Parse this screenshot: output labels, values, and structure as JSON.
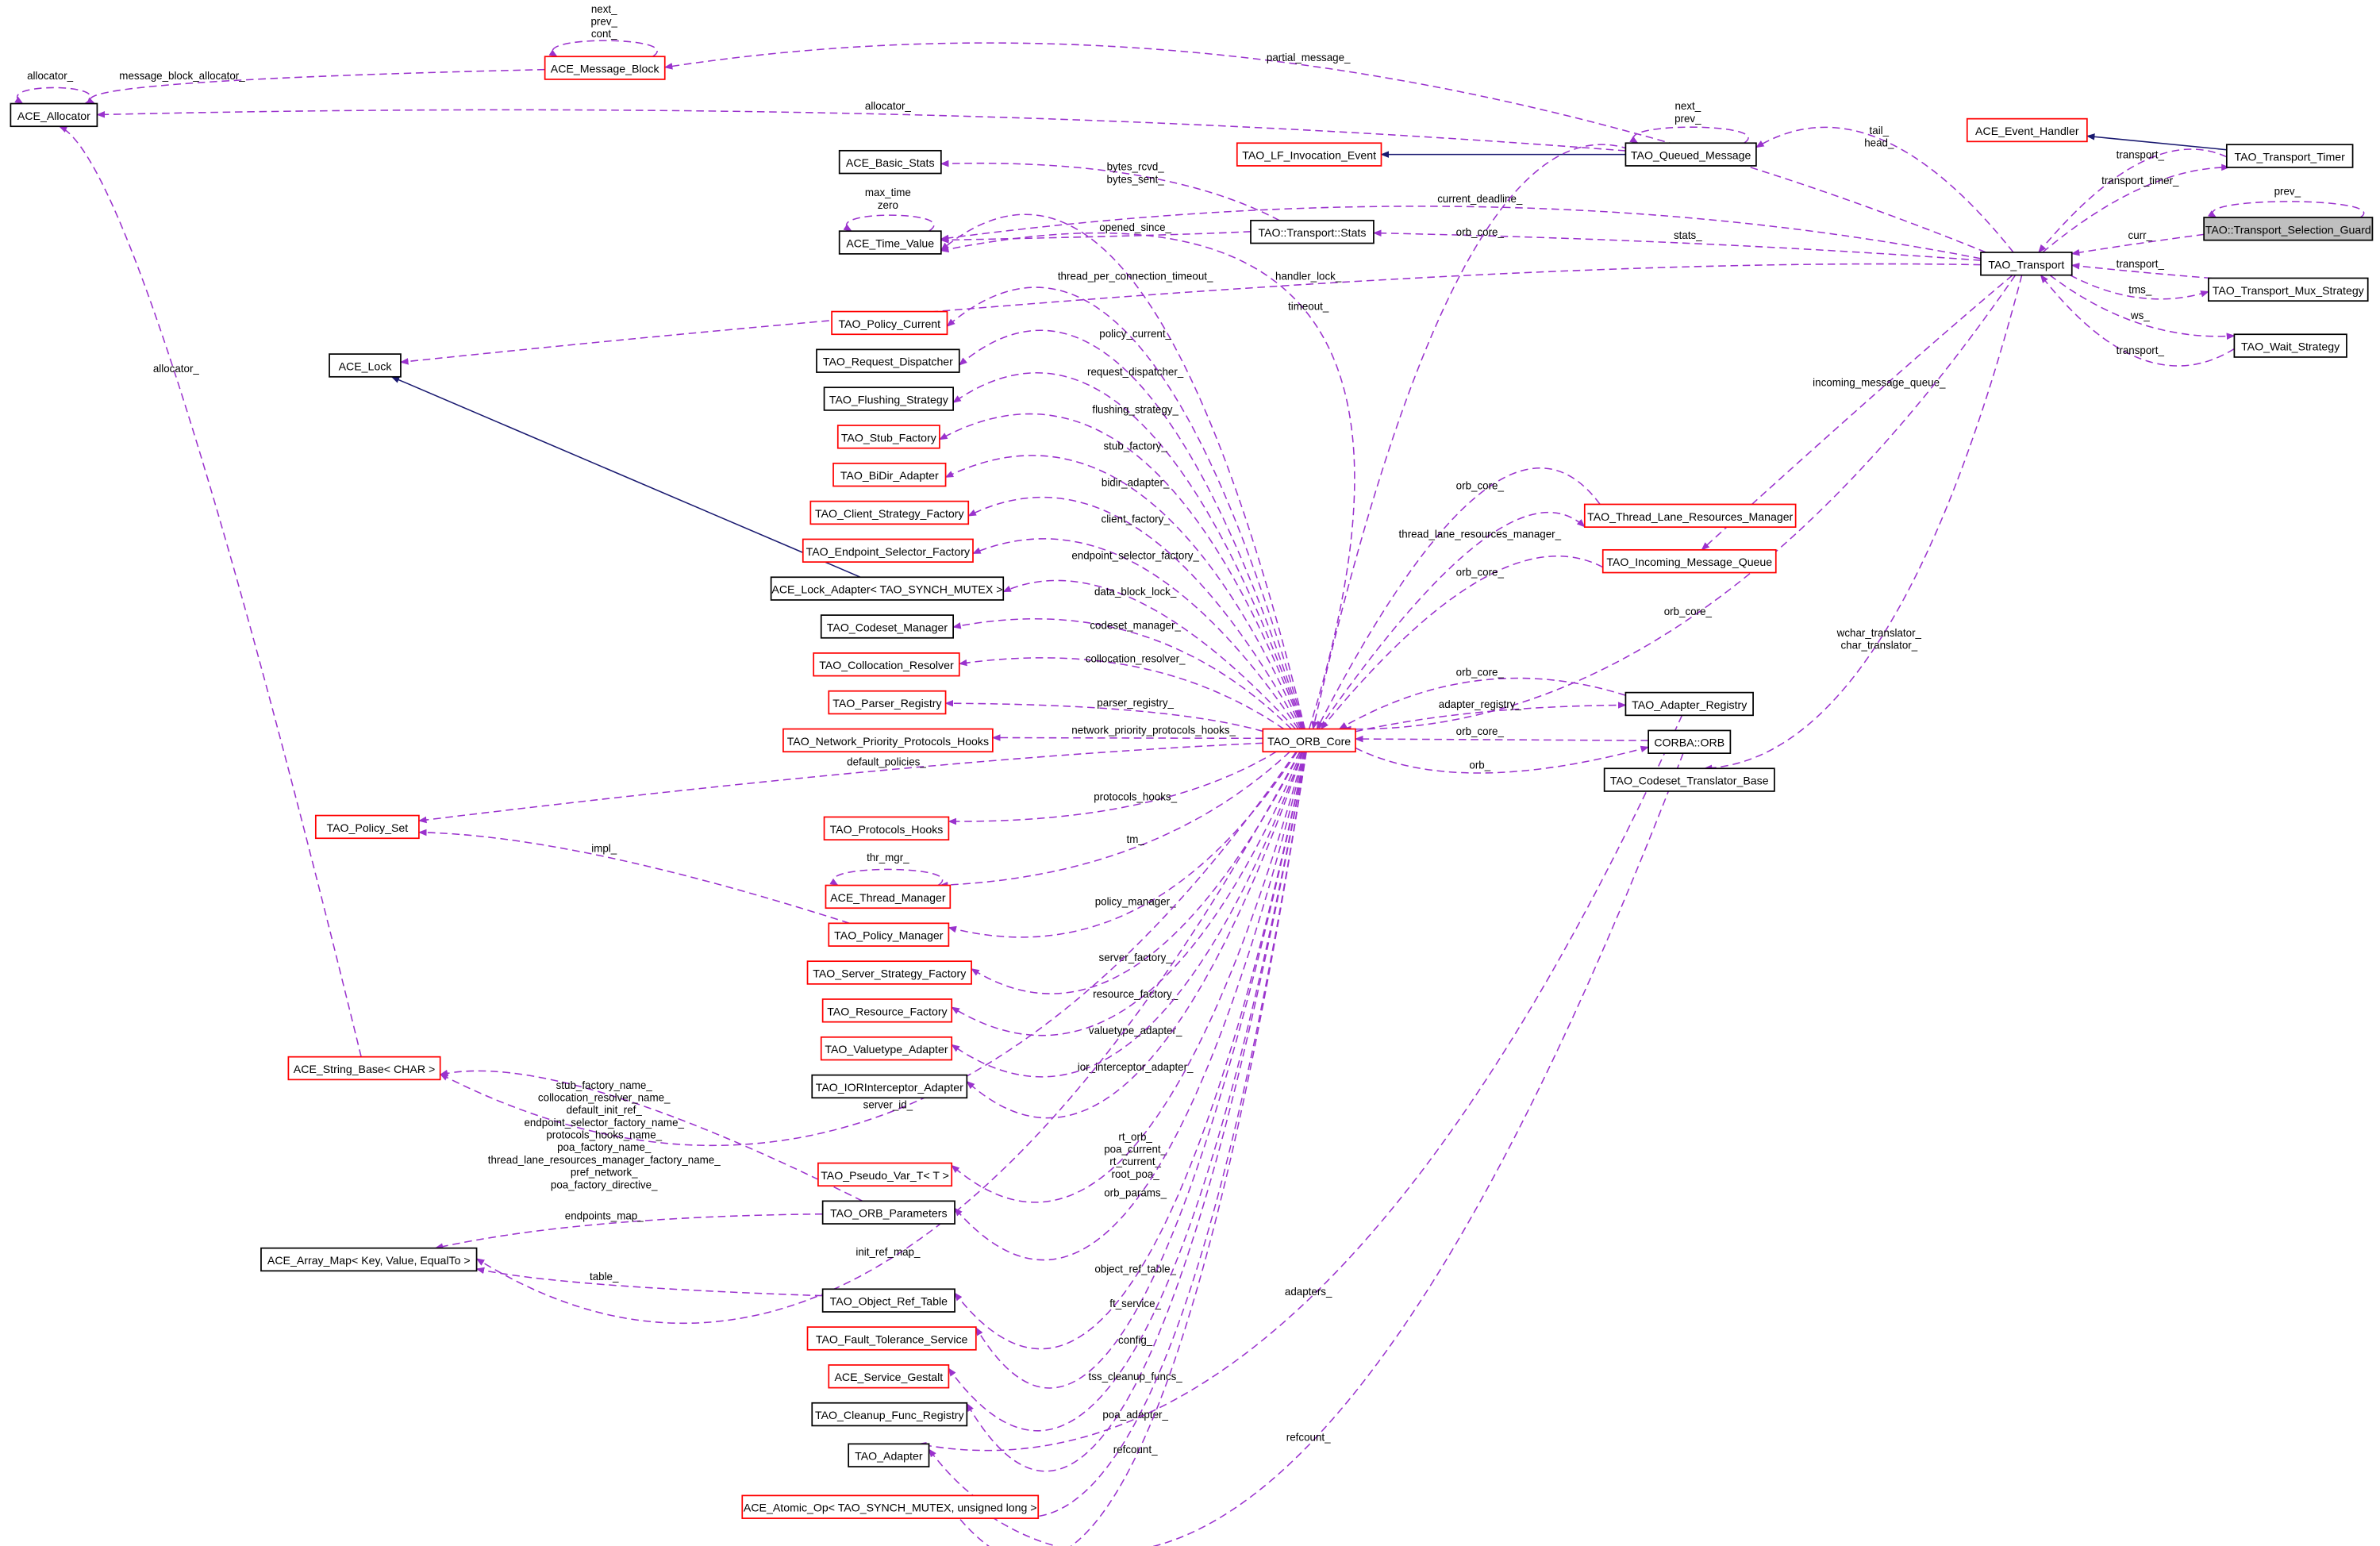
{
  "colors": {
    "member_edge": "#9a32cd",
    "inherit_edge": "#191970",
    "undocumented_border": "#ff0000",
    "documented_border": "#000000",
    "focus_fill": "#bfbfbf"
  },
  "nodes": [
    {
      "id": "alloc",
      "label": "ACE_Allocator",
      "style": "black"
    },
    {
      "id": "mb",
      "label": "ACE_Message_Block",
      "style": "red"
    },
    {
      "id": "bstats",
      "label": "ACE_Basic_Stats",
      "style": "black"
    },
    {
      "id": "tv",
      "label": "ACE_Time_Value",
      "style": "black"
    },
    {
      "id": "lfie",
      "label": "TAO_LF_Invocation_Event",
      "style": "red"
    },
    {
      "id": "qm",
      "label": "TAO_Queued_Message",
      "style": "black"
    },
    {
      "id": "eh",
      "label": "ACE_Event_Handler",
      "style": "red"
    },
    {
      "id": "ttimer",
      "label": "TAO_Transport_Timer",
      "style": "black"
    },
    {
      "id": "guard",
      "label": "TAO::Transport_Selection_Guard",
      "style": "gray"
    },
    {
      "id": "tstats",
      "label": "TAO::Transport::Stats",
      "style": "black"
    },
    {
      "id": "transport",
      "label": "TAO_Transport",
      "style": "black"
    },
    {
      "id": "mux",
      "label": "TAO_Transport_Mux_Strategy",
      "style": "black"
    },
    {
      "id": "wait",
      "label": "TAO_Wait_Strategy",
      "style": "black"
    },
    {
      "id": "lock",
      "label": "ACE_Lock",
      "style": "black"
    },
    {
      "id": "pcur",
      "label": "TAO_Policy_Current",
      "style": "red"
    },
    {
      "id": "rdisp",
      "label": "TAO_Request_Dispatcher",
      "style": "black"
    },
    {
      "id": "flush",
      "label": "TAO_Flushing_Strategy",
      "style": "black"
    },
    {
      "id": "stubf",
      "label": "TAO_Stub_Factory",
      "style": "red"
    },
    {
      "id": "bidir",
      "label": "TAO_BiDir_Adapter",
      "style": "red"
    },
    {
      "id": "csf",
      "label": "TAO_Client_Strategy_Factory",
      "style": "red"
    },
    {
      "id": "esf",
      "label": "TAO_Endpoint_Selector_Factory",
      "style": "red"
    },
    {
      "id": "lockad",
      "label": "ACE_Lock_Adapter< TAO_SYNCH_MUTEX >",
      "style": "black"
    },
    {
      "id": "csm",
      "label": "TAO_Codeset_Manager",
      "style": "black"
    },
    {
      "id": "colres",
      "label": "TAO_Collocation_Resolver",
      "style": "red"
    },
    {
      "id": "preg",
      "label": "TAO_Parser_Registry",
      "style": "red"
    },
    {
      "id": "npph",
      "label": "TAO_Network_Priority_Protocols_Hooks",
      "style": "red"
    },
    {
      "id": "orbcore",
      "label": "TAO_ORB_Core",
      "style": "red"
    },
    {
      "id": "tlrm",
      "label": "TAO_Thread_Lane_Resources_Manager",
      "style": "red"
    },
    {
      "id": "imq",
      "label": "TAO_Incoming_Message_Queue",
      "style": "red"
    },
    {
      "id": "areg",
      "label": "TAO_Adapter_Registry",
      "style": "black"
    },
    {
      "id": "orb",
      "label": "CORBA::ORB",
      "style": "black"
    },
    {
      "id": "ctb",
      "label": "TAO_Codeset_Translator_Base",
      "style": "black"
    },
    {
      "id": "pset",
      "label": "TAO_Policy_Set",
      "style": "red"
    },
    {
      "id": "phooks",
      "label": "TAO_Protocols_Hooks",
      "style": "red"
    },
    {
      "id": "thrmgr",
      "label": "ACE_Thread_Manager",
      "style": "red"
    },
    {
      "id": "pmgr",
      "label": "TAO_Policy_Manager",
      "style": "red"
    },
    {
      "id": "ssf",
      "label": "TAO_Server_Strategy_Factory",
      "style": "red"
    },
    {
      "id": "rf",
      "label": "TAO_Resource_Factory",
      "style": "red"
    },
    {
      "id": "vta",
      "label": "TAO_Valuetype_Adapter",
      "style": "red"
    },
    {
      "id": "iora",
      "label": "TAO_IORInterceptor_Adapter",
      "style": "black"
    },
    {
      "id": "strb",
      "label": "ACE_String_Base< CHAR >",
      "style": "red"
    },
    {
      "id": "pvar",
      "label": "TAO_Pseudo_Var_T< T >",
      "style": "red"
    },
    {
      "id": "orbp",
      "label": "TAO_ORB_Parameters",
      "style": "black"
    },
    {
      "id": "amap",
      "label": "ACE_Array_Map< Key, Value, EqualTo >",
      "style": "black"
    },
    {
      "id": "ort",
      "label": "TAO_Object_Ref_Table",
      "style": "black"
    },
    {
      "id": "fts",
      "label": "TAO_Fault_Tolerance_Service",
      "style": "red"
    },
    {
      "id": "sg",
      "label": "ACE_Service_Gestalt",
      "style": "red"
    },
    {
      "id": "cfr",
      "label": "TAO_Cleanup_Func_Registry",
      "style": "black"
    },
    {
      "id": "adapter",
      "label": "TAO_Adapter",
      "style": "black"
    },
    {
      "id": "atomic",
      "label": "ACE_Atomic_Op< TAO_SYNCH_MUTEX, unsigned long >",
      "style": "red"
    }
  ],
  "edges": [
    {
      "from": "alloc",
      "to": "alloc",
      "kind": "member",
      "label": [
        "allocator_"
      ]
    },
    {
      "from": "mb",
      "to": "alloc",
      "kind": "member",
      "label": [
        "message_block_allocator_"
      ]
    },
    {
      "from": "mb",
      "to": "mb",
      "kind": "member",
      "label": [
        "next_",
        "prev_",
        "cont_"
      ]
    },
    {
      "from": "transport",
      "to": "mb",
      "kind": "member",
      "label": [
        "partial_message_"
      ]
    },
    {
      "from": "qm",
      "to": "alloc",
      "kind": "member",
      "label": [
        "allocator_"
      ]
    },
    {
      "from": "qm",
      "to": "qm",
      "kind": "member",
      "label": [
        "next_",
        "prev_"
      ]
    },
    {
      "from": "qm",
      "to": "lfie",
      "kind": "inherit",
      "label": []
    },
    {
      "from": "transport",
      "to": "qm",
      "kind": "member",
      "label": [
        "tail_",
        "head_"
      ]
    },
    {
      "from": "ttimer",
      "to": "eh",
      "kind": "inherit",
      "label": []
    },
    {
      "from": "ttimer",
      "to": "transport",
      "kind": "member",
      "label": [
        "transport_"
      ]
    },
    {
      "from": "transport",
      "to": "ttimer",
      "kind": "member",
      "label": [
        "transport_timer_"
      ]
    },
    {
      "from": "guard",
      "to": "guard",
      "kind": "member",
      "label": [
        "prev_"
      ]
    },
    {
      "from": "guard",
      "to": "transport",
      "kind": "member",
      "label": [
        "curr_"
      ]
    },
    {
      "from": "mux",
      "to": "transport",
      "kind": "member",
      "label": [
        "transport_"
      ]
    },
    {
      "from": "transport",
      "to": "mux",
      "kind": "member",
      "label": [
        "tms_"
      ]
    },
    {
      "from": "transport",
      "to": "wait",
      "kind": "member",
      "label": [
        "ws_"
      ]
    },
    {
      "from": "wait",
      "to": "transport",
      "kind": "member",
      "label": [
        "transport_"
      ]
    },
    {
      "from": "tstats",
      "to": "bstats",
      "kind": "member",
      "label": [
        "bytes_rcvd_",
        "bytes_sent_"
      ]
    },
    {
      "from": "tstats",
      "to": "tv",
      "kind": "member",
      "label": [
        "opened_since_"
      ]
    },
    {
      "from": "transport",
      "to": "tstats",
      "kind": "member",
      "label": [
        "stats_"
      ]
    },
    {
      "from": "transport",
      "to": "tv",
      "kind": "member",
      "label": [
        "current_deadline_"
      ]
    },
    {
      "from": "tv",
      "to": "tv",
      "kind": "member",
      "label": [
        "max_time",
        "zero"
      ]
    },
    {
      "from": "orbcore",
      "to": "tv",
      "kind": "member",
      "label": [
        "thread_per_connection_timeout_"
      ]
    },
    {
      "from": "transport",
      "to": "lock",
      "kind": "member",
      "label": [
        "handler_lock_"
      ]
    },
    {
      "from": "qm",
      "to": "orbcore",
      "kind": "member",
      "label": [
        "orb_core_"
      ]
    },
    {
      "from": "orbcore",
      "to": "tv",
      "kind": "member",
      "label": [
        "timeout_"
      ]
    },
    {
      "from": "lockad",
      "to": "lock",
      "kind": "inherit",
      "label": []
    },
    {
      "from": "orbcore",
      "to": "pcur",
      "kind": "member",
      "label": [
        "policy_current_"
      ]
    },
    {
      "from": "orbcore",
      "to": "rdisp",
      "kind": "member",
      "label": [
        "request_dispatcher_"
      ]
    },
    {
      "from": "orbcore",
      "to": "flush",
      "kind": "member",
      "label": [
        "flushing_strategy_"
      ]
    },
    {
      "from": "orbcore",
      "to": "stubf",
      "kind": "member",
      "label": [
        "stub_factory_"
      ]
    },
    {
      "from": "orbcore",
      "to": "bidir",
      "kind": "member",
      "label": [
        "bidir_adapter_"
      ]
    },
    {
      "from": "orbcore",
      "to": "csf",
      "kind": "member",
      "label": [
        "client_factory_"
      ]
    },
    {
      "from": "orbcore",
      "to": "esf",
      "kind": "member",
      "label": [
        "endpoint_selector_factory_"
      ]
    },
    {
      "from": "orbcore",
      "to": "lockad",
      "kind": "member",
      "label": [
        "data_block_lock_"
      ]
    },
    {
      "from": "orbcore",
      "to": "csm",
      "kind": "member",
      "label": [
        "codeset_manager_"
      ]
    },
    {
      "from": "orbcore",
      "to": "colres",
      "kind": "member",
      "label": [
        "collocation_resolver_"
      ]
    },
    {
      "from": "orbcore",
      "to": "preg",
      "kind": "member",
      "label": [
        "parser_registry_"
      ]
    },
    {
      "from": "orbcore",
      "to": "npph",
      "kind": "member",
      "label": [
        "network_priority_protocols_hooks_"
      ]
    },
    {
      "from": "orbcore",
      "to": "pset",
      "kind": "member",
      "label": [
        "default_policies_"
      ]
    },
    {
      "from": "orbcore",
      "to": "phooks",
      "kind": "member",
      "label": [
        "protocols_hooks_"
      ]
    },
    {
      "from": "orbcore",
      "to": "thrmgr",
      "kind": "member",
      "label": [
        "tm_"
      ]
    },
    {
      "from": "thrmgr",
      "to": "thrmgr",
      "kind": "member",
      "label": [
        "thr_mgr_"
      ]
    },
    {
      "from": "orbcore",
      "to": "pmgr",
      "kind": "member",
      "label": [
        "policy_manager_"
      ]
    },
    {
      "from": "orbcore",
      "to": "ssf",
      "kind": "member",
      "label": [
        "server_factory_"
      ]
    },
    {
      "from": "orbcore",
      "to": "rf",
      "kind": "member",
      "label": [
        "resource_factory_"
      ]
    },
    {
      "from": "orbcore",
      "to": "vta",
      "kind": "member",
      "label": [
        "valuetype_adapter_"
      ]
    },
    {
      "from": "orbcore",
      "to": "iora",
      "kind": "member",
      "label": [
        "ior_interceptor_adapter_"
      ]
    },
    {
      "from": "orbcore",
      "to": "strb",
      "kind": "member",
      "label": [
        "server_id_"
      ]
    },
    {
      "from": "orbcore",
      "to": "pvar",
      "kind": "member",
      "label": [
        "rt_orb_",
        "poa_current_",
        "rt_current_",
        "root_poa_"
      ]
    },
    {
      "from": "orbcore",
      "to": "orbp",
      "kind": "member",
      "label": [
        "orb_params_"
      ]
    },
    {
      "from": "orbcore",
      "to": "amap",
      "kind": "member",
      "label": [
        "init_ref_map_"
      ]
    },
    {
      "from": "orbcore",
      "to": "ort",
      "kind": "member",
      "label": [
        "object_ref_table_"
      ]
    },
    {
      "from": "orbcore",
      "to": "fts",
      "kind": "member",
      "label": [
        "ft_service_"
      ]
    },
    {
      "from": "orbcore",
      "to": "sg",
      "kind": "member",
      "label": [
        "config_"
      ]
    },
    {
      "from": "orbcore",
      "to": "cfr",
      "kind": "member",
      "label": [
        "tss_cleanup_funcs_"
      ]
    },
    {
      "from": "orbcore",
      "to": "adapter",
      "kind": "member",
      "label": [
        "poa_adapter_"
      ]
    },
    {
      "from": "orbcore",
      "to": "atomic",
      "kind": "member",
      "label": [
        "refcount_"
      ]
    },
    {
      "from": "pmgr",
      "to": "pset",
      "kind": "member",
      "label": [
        "impl_"
      ]
    },
    {
      "from": "strb",
      "to": "alloc",
      "kind": "member",
      "label": [
        "allocator_"
      ]
    },
    {
      "from": "orbp",
      "to": "strb",
      "kind": "member",
      "label": [
        "stub_factory_name_",
        "collocation_resolver_name_",
        "default_init_ref_",
        "endpoint_selector_factory_name_",
        "protocols_hooks_name_",
        "poa_factory_name_",
        "thread_lane_resources_manager_factory_name_",
        "pref_network_",
        "poa_factory_directive_"
      ]
    },
    {
      "from": "orbp",
      "to": "amap",
      "kind": "member",
      "label": [
        "endpoints_map_"
      ]
    },
    {
      "from": "ort",
      "to": "amap",
      "kind": "member",
      "label": [
        "table_"
      ]
    },
    {
      "from": "tlrm",
      "to": "orbcore",
      "kind": "member",
      "label": [
        "orb_core_"
      ]
    },
    {
      "from": "orbcore",
      "to": "tlrm",
      "kind": "member",
      "label": [
        "thread_lane_resources_manager_"
      ]
    },
    {
      "from": "imq",
      "to": "orbcore",
      "kind": "member",
      "label": [
        "orb_core_"
      ]
    },
    {
      "from": "transport",
      "to": "imq",
      "kind": "member",
      "label": [
        "incoming_message_queue_"
      ]
    },
    {
      "from": "transport",
      "to": "orbcore",
      "kind": "member",
      "label": [
        "orb_core_"
      ]
    },
    {
      "from": "transport",
      "to": "ctb",
      "kind": "member",
      "label": [
        "wchar_translator_",
        "char_translator_"
      ]
    },
    {
      "from": "areg",
      "to": "orbcore",
      "kind": "member",
      "label": [
        "orb_core_"
      ]
    },
    {
      "from": "orbcore",
      "to": "areg",
      "kind": "member",
      "label": [
        "adapter_registry_"
      ]
    },
    {
      "from": "orb",
      "to": "orbcore",
      "kind": "member",
      "label": [
        "orb_core_"
      ]
    },
    {
      "from": "orbcore",
      "to": "orb",
      "kind": "member",
      "label": [
        "orb_"
      ]
    },
    {
      "from": "areg",
      "to": "adapter",
      "kind": "member",
      "label": [
        "adapters_"
      ]
    },
    {
      "from": "orb",
      "to": "atomic",
      "kind": "member",
      "label": [
        "refcount_"
      ]
    }
  ]
}
